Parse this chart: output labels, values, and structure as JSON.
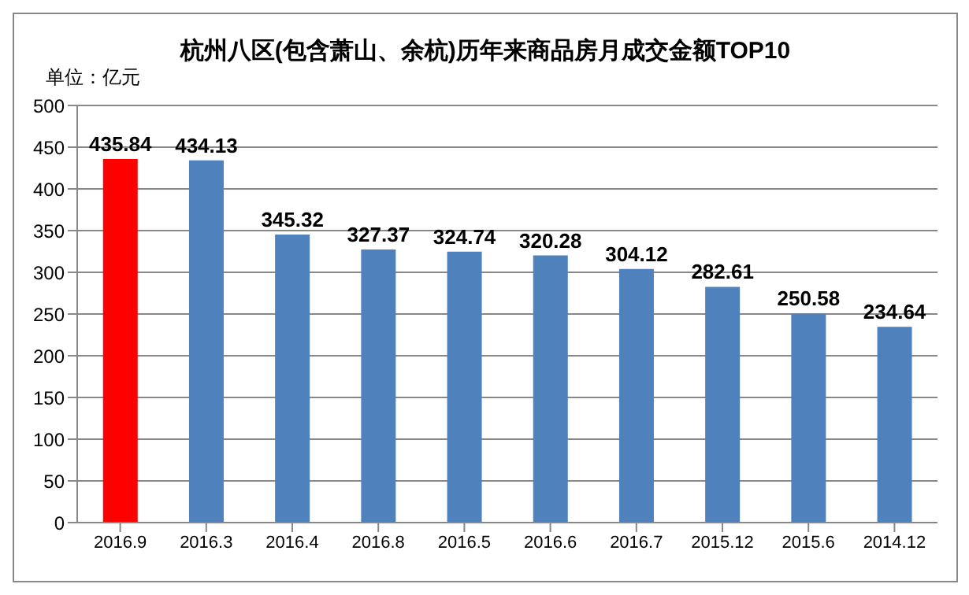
{
  "chart_data": {
    "type": "bar",
    "title": "杭州八区(包含萧山、余杭)历年来商品房月成交金额TOP10",
    "ylabel": "单位：亿元",
    "categories": [
      "2016.9",
      "2016.3",
      "2016.4",
      "2016.8",
      "2016.5",
      "2016.6",
      "2016.7",
      "2015.12",
      "2015.6",
      "2014.12"
    ],
    "values": [
      435.84,
      434.13,
      345.32,
      327.37,
      324.74,
      320.28,
      304.12,
      282.61,
      250.58,
      234.64
    ],
    "colors": [
      "#ff0000",
      "#4f81bd",
      "#4f81bd",
      "#4f81bd",
      "#4f81bd",
      "#4f81bd",
      "#4f81bd",
      "#4f81bd",
      "#4f81bd",
      "#4f81bd"
    ],
    "ylim": [
      0,
      500
    ],
    "yticks": [
      0,
      50,
      100,
      150,
      200,
      250,
      300,
      350,
      400,
      450,
      500
    ],
    "grid": "y",
    "data_labels": true
  }
}
